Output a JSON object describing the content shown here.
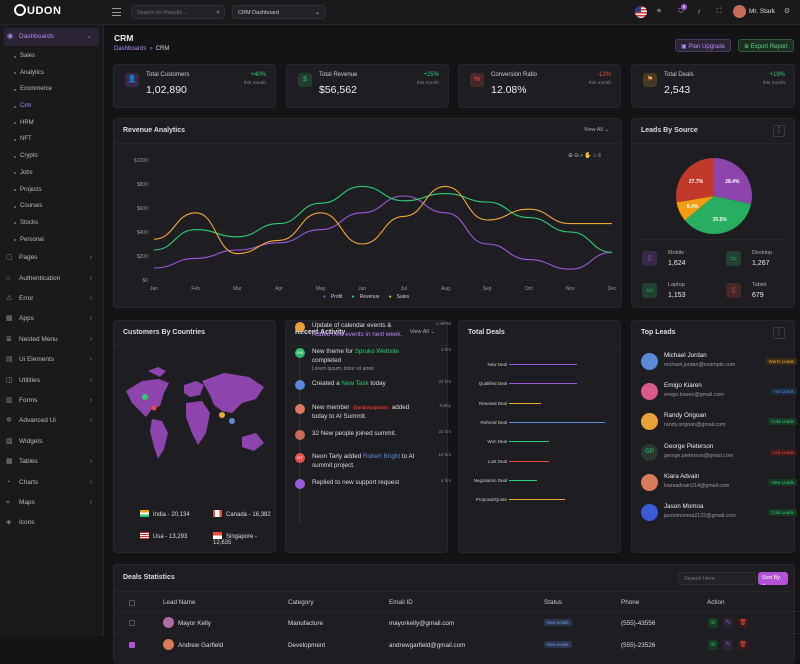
{
  "header": {
    "logo": "UDON",
    "search_placeholder": "Search for Results...",
    "dashboard_select": "CRM Dashboard",
    "user": "Mr. Stark",
    "notif_count": "5"
  },
  "sidebar": {
    "dashboards": "Dashboards",
    "sub": [
      "Sales",
      "Analytics",
      "Ecommerce",
      "Crm",
      "HRM",
      "NFT",
      "Crypto",
      "Jobs",
      "Projects",
      "Courses",
      "Stocks",
      "Personal"
    ],
    "items": [
      {
        "label": "Pages",
        "icon": "▢"
      },
      {
        "label": "Authentication",
        "icon": "⌂"
      },
      {
        "label": "Error",
        "icon": "⚠"
      },
      {
        "label": "Apps",
        "icon": "▦"
      },
      {
        "label": "Nested Menu",
        "icon": "≣"
      },
      {
        "label": "Ui Elements",
        "icon": "▤"
      },
      {
        "label": "Utilities",
        "icon": "◫"
      },
      {
        "label": "Forms",
        "icon": "▥"
      },
      {
        "label": "Advanced Ui",
        "icon": "✲"
      },
      {
        "label": "Widgets",
        "icon": "▧"
      },
      {
        "label": "Tables",
        "icon": "▦"
      },
      {
        "label": "Charts",
        "icon": "◔"
      },
      {
        "label": "Maps",
        "icon": "⌖"
      },
      {
        "label": "Icons",
        "icon": "◈"
      }
    ]
  },
  "page": {
    "title": "CRM",
    "breadcrumb_root": "Dashboards",
    "breadcrumb_current": "CRM",
    "plan_upgrade": "Plan Upgrade",
    "export_report": "Export Report"
  },
  "stats": [
    {
      "label": "Total Customers",
      "value": "1,02,890",
      "pct": "+40%",
      "sub": "this month",
      "color": "#a05bd8",
      "icon": "👤"
    },
    {
      "label": "Total Revenue",
      "value": "$56,562",
      "pct": "+25%",
      "sub": "this month",
      "color": "#2fbb6b",
      "icon": "$"
    },
    {
      "label": "Conversion Ratio",
      "value": "12.08%",
      "pct": "-12%",
      "sub": "this month",
      "color": "#e8514e",
      "icon": "%"
    },
    {
      "label": "Total Deals",
      "value": "2,543",
      "pct": "+19%",
      "sub": "this month",
      "color": "#f0a73a",
      "icon": "⚑"
    }
  ],
  "revenue": {
    "title": "Revenue Analytics",
    "view_all": "View All"
  },
  "chart_data": {
    "type": "line",
    "title": "Revenue Analytics",
    "categories": [
      "Jan",
      "Feb",
      "Mar",
      "Apr",
      "May",
      "Jun",
      "Jul",
      "Aug",
      "Sep",
      "Oct",
      "Nov",
      "Dec"
    ],
    "yticks": [
      "$0",
      "$200",
      "$400",
      "$600",
      "$800",
      "$1000"
    ],
    "ylim": [
      0,
      1000
    ],
    "series": [
      {
        "name": "Profit",
        "color": "#9b59d9",
        "values": [
          100,
          180,
          250,
          310,
          420,
          560,
          700,
          560,
          300,
          170,
          90,
          230
        ]
      },
      {
        "name": "Revenue",
        "color": "#2ecc71",
        "values": [
          250,
          420,
          360,
          470,
          640,
          780,
          660,
          720,
          650,
          520,
          400,
          230
        ]
      },
      {
        "name": "Sales",
        "color": "#f0a73a",
        "values": [
          340,
          560,
          220,
          330,
          560,
          300,
          530,
          780,
          500,
          590,
          470,
          470
        ]
      }
    ]
  },
  "leads_source": {
    "title": "Leads By Source",
    "slices": [
      {
        "label": "27.7%",
        "value": 27.7,
        "color": "#c0392b"
      },
      {
        "label": "28.4%",
        "value": 28.4,
        "color": "#8e44ad"
      },
      {
        "label": "35.5%",
        "value": 35.5,
        "color": "#27ae60"
      },
      {
        "label": "8.4%",
        "value": 8.4,
        "color": "#f39c12"
      }
    ],
    "devices": [
      {
        "label": "Mobile",
        "value": "1,624",
        "color": "#9b59d9",
        "icon": "▯"
      },
      {
        "label": "Desktop",
        "value": "1,267",
        "color": "#2ecc71",
        "icon": "▭"
      },
      {
        "label": "Laptop",
        "value": "1,153",
        "color": "#2ecc71",
        "icon": "▭"
      },
      {
        "label": "Tablet",
        "value": "679",
        "color": "#e74c3c",
        "icon": "▯"
      }
    ]
  },
  "countries": {
    "title": "Customers By Countries",
    "list": [
      {
        "name": "India - 20,134"
      },
      {
        "name": "Canada - 16,382"
      },
      {
        "name": "Usa - 13,293"
      },
      {
        "name": "Singapore - 12,635"
      }
    ]
  },
  "activity": {
    "title": "Recent Activity",
    "view_all": "View All",
    "items": [
      {
        "a": "Update of calendar events &",
        "b": "Added new events in next week.",
        "time": "4:45PM",
        "avc": "#e8a23a",
        "ini": ""
      },
      {
        "a": "New theme for",
        "hl": "Spruko Website",
        "a2": "completed",
        "b": "Lorem ipsum, dolor sit amet.",
        "time": "3 hrs",
        "avc": "#2fbb6b",
        "ini": "EM"
      },
      {
        "a": "Created a",
        "hl": "New Task",
        "a2": "today",
        "time": "22 hrs",
        "avc": "#5a8ad8",
        "ini": ""
      },
      {
        "a": "New member",
        "hl": "@andrew.gurrero",
        "a2": "added today to AI Summit.",
        "time": "Today",
        "avc": "#d87b5a",
        "ini": ""
      },
      {
        "a": "32 New people joined summit.",
        "time": "22 hrs",
        "avc": "#c86b5a",
        "ini": ""
      },
      {
        "a": "Neon Tarly added",
        "hl": "Robert Bright",
        "a2": "to AI summit project.",
        "time": "12 hrs",
        "avc": "#e8514e",
        "ini": "NT"
      },
      {
        "a": "Replied to new support request",
        "time": "4 hrs",
        "avc": "#9b5ad8",
        "ini": ""
      }
    ]
  },
  "deals": {
    "title": "Total Deals",
    "stages": [
      {
        "name": "New Deal",
        "color": "#9b59d9",
        "w": 68
      },
      {
        "name": "Qualified Deal",
        "color": "#9b59d9",
        "w": 68
      },
      {
        "name": "Renewal Deal",
        "color": "#f0a73a",
        "w": 32
      },
      {
        "name": "Referral Deal",
        "color": "#5a8ad8",
        "w": 96
      },
      {
        "name": "Won Deal",
        "color": "#2ecc71",
        "w": 40
      },
      {
        "name": "Lost Deal",
        "color": "#e74c3c",
        "w": 40
      },
      {
        "name": "Negotiation Deal",
        "color": "#2ecc71",
        "w": 28
      },
      {
        "name": "Proposal/Quote",
        "color": "#f0a73a",
        "w": 56
      }
    ]
  },
  "top_leads": {
    "title": "Top Leads",
    "items": [
      {
        "name": "Michael Jordan",
        "email": "michael.jordan@example.com",
        "badge": "Warm Leads",
        "bc": "#f0a73a",
        "bg": "#3a2c16",
        "avc": "#5a8ad8",
        "ini": ""
      },
      {
        "name": "Emigo Kiaren",
        "email": "emigo.kiaren@gmail.com",
        "badge": "Hot Leads",
        "bc": "#5a8ad8",
        "bg": "#1c2a40",
        "avc": "#d85a8a",
        "ini": ""
      },
      {
        "name": "Randy Origoan",
        "email": "randy.origoan@gmail.com",
        "badge": "Cold Leads",
        "bc": "#2ecc71",
        "bg": "#183824",
        "avc": "#e8a23a",
        "ini": ""
      },
      {
        "name": "George Pieterson",
        "email": "george.pieterson@gmail.com",
        "badge": "Lost Leads",
        "bc": "#e74c3c",
        "bg": "#3a1a1a",
        "avc": "#2a3a30",
        "ini": "GP"
      },
      {
        "name": "Kiara Advain",
        "email": "kiaraadvain214@gmail.com",
        "badge": "New Leads",
        "bc": "#2ecc71",
        "bg": "#183824",
        "avc": "#d87b5a",
        "ini": ""
      },
      {
        "name": "Jason Momoa",
        "email": "jasonmomoa2132@gmail.com",
        "badge": "Cold Leads",
        "bc": "#2ecc71",
        "bg": "#183824",
        "avc": "#3a5ad8",
        "ini": ""
      }
    ]
  },
  "table": {
    "title": "Deals Statistics",
    "search_placeholder": "Search Here",
    "sort_by": "Sort By",
    "cols": [
      "Lead Name",
      "Category",
      "Email ID",
      "Status",
      "Phone",
      "Action"
    ],
    "rows": [
      {
        "name": "Mayor Kelly",
        "cat": "Manufacture",
        "email": "mayorkelly@gmail.com",
        "status": "New Leads",
        "phone": "(555)-43556",
        "checked": false
      },
      {
        "name": "Andrew Garfield",
        "cat": "Development",
        "email": "andrewgarfield@gmail.com",
        "status": "New Leads",
        "phone": "(555)-23526",
        "checked": true
      }
    ]
  }
}
